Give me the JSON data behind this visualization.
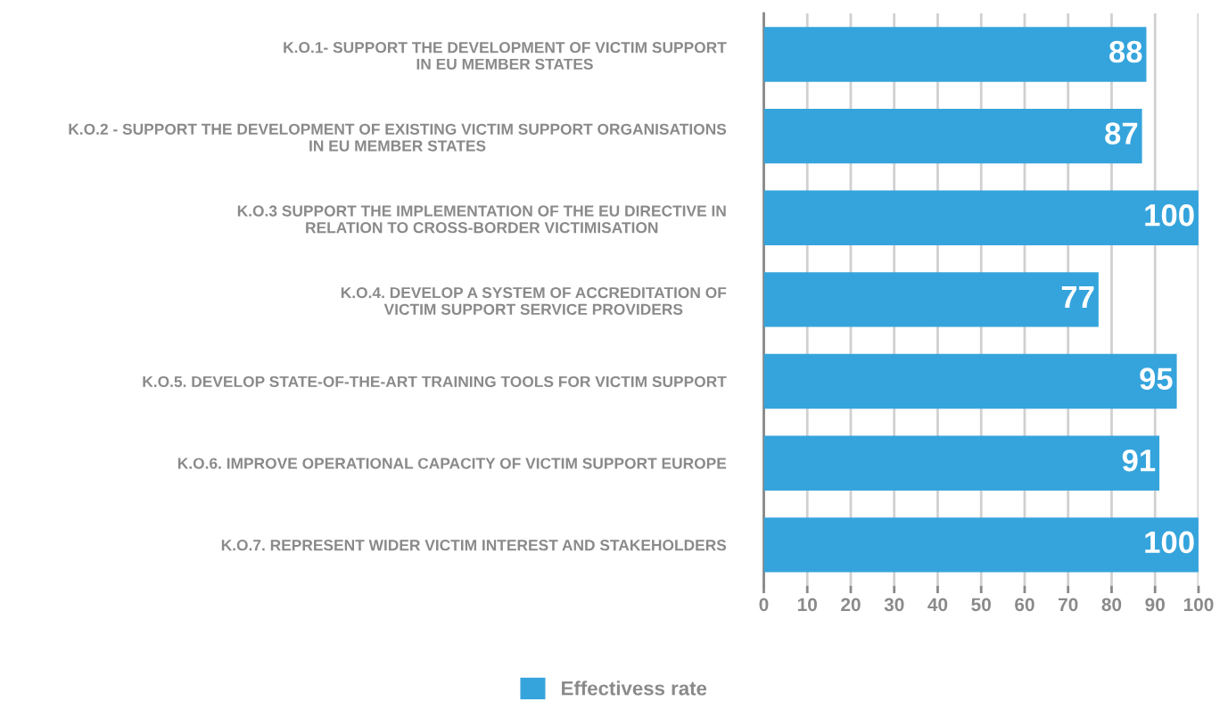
{
  "chart_data": {
    "type": "bar",
    "orientation": "horizontal",
    "categories": [
      "K.O.1- SUPPORT THE DEVELOPMENT OF VICTIM SUPPORT\nIN EU MEMBER STATES",
      "K.O.2 - SUPPORT THE DEVELOPMENT OF EXISTING VICTIM SUPPORT ORGANISATIONS\nIN EU MEMBER STATES",
      "K.O.3 SUPPORT THE IMPLEMENTATION OF THE EU DIRECTIVE IN\nRELATION TO CROSS-BORDER VICTIMISATION",
      "K.O.4. DEVELOP A SYSTEM OF ACCREDITATION OF\nVICTIM SUPPORT SERVICE PROVIDERS",
      "K.O.5. DEVELOP STATE-OF-THE-ART TRAINING TOOLS FOR VICTIM SUPPORT",
      "K.O.6. IMPROVE OPERATIONAL CAPACITY OF VICTIM SUPPORT EUROPE",
      "K.O.7. REPRESENT WIDER VICTIM INTEREST AND STAKEHOLDERS"
    ],
    "series": [
      {
        "name": "Effectivess rate",
        "color": "#35a4dc",
        "values": [
          88,
          87,
          100,
          77,
          95,
          91,
          100
        ]
      }
    ],
    "xlim": [
      0,
      100
    ],
    "xticks": [
      0,
      10,
      20,
      30,
      40,
      50,
      60,
      70,
      80,
      90,
      100
    ],
    "grid": "x",
    "legend": "bottom",
    "data_labels": true
  }
}
